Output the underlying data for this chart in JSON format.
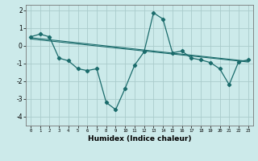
{
  "title": "",
  "xlabel": "Humidex (Indice chaleur)",
  "bg_color": "#cceaea",
  "grid_color": "#aacccc",
  "line_color": "#1a6b6b",
  "x_ticks": [
    0,
    1,
    2,
    3,
    4,
    5,
    6,
    7,
    8,
    9,
    10,
    11,
    12,
    13,
    14,
    15,
    16,
    17,
    18,
    19,
    20,
    21,
    22,
    23
  ],
  "ylim": [
    -4.5,
    2.3
  ],
  "xlim": [
    -0.5,
    23.5
  ],
  "series1_x": [
    0,
    1,
    2,
    3,
    4,
    5,
    6,
    7,
    8,
    9,
    10,
    11,
    12,
    13,
    14,
    15,
    16,
    17,
    18,
    19,
    20,
    21,
    22,
    23
  ],
  "series1_y": [
    0.5,
    0.65,
    0.5,
    -0.7,
    -0.85,
    -1.3,
    -1.4,
    -1.3,
    -3.2,
    -3.6,
    -2.4,
    -1.1,
    -0.35,
    1.85,
    1.5,
    -0.4,
    -0.3,
    -0.7,
    -0.8,
    -0.95,
    -1.3,
    -2.2,
    -0.9,
    -0.8
  ],
  "trend_start": 0.45,
  "trend_end": -0.88,
  "trend2_start": 0.38,
  "trend2_end": -0.92,
  "yticks": [
    -4,
    -3,
    -2,
    -1,
    0,
    1,
    2
  ]
}
